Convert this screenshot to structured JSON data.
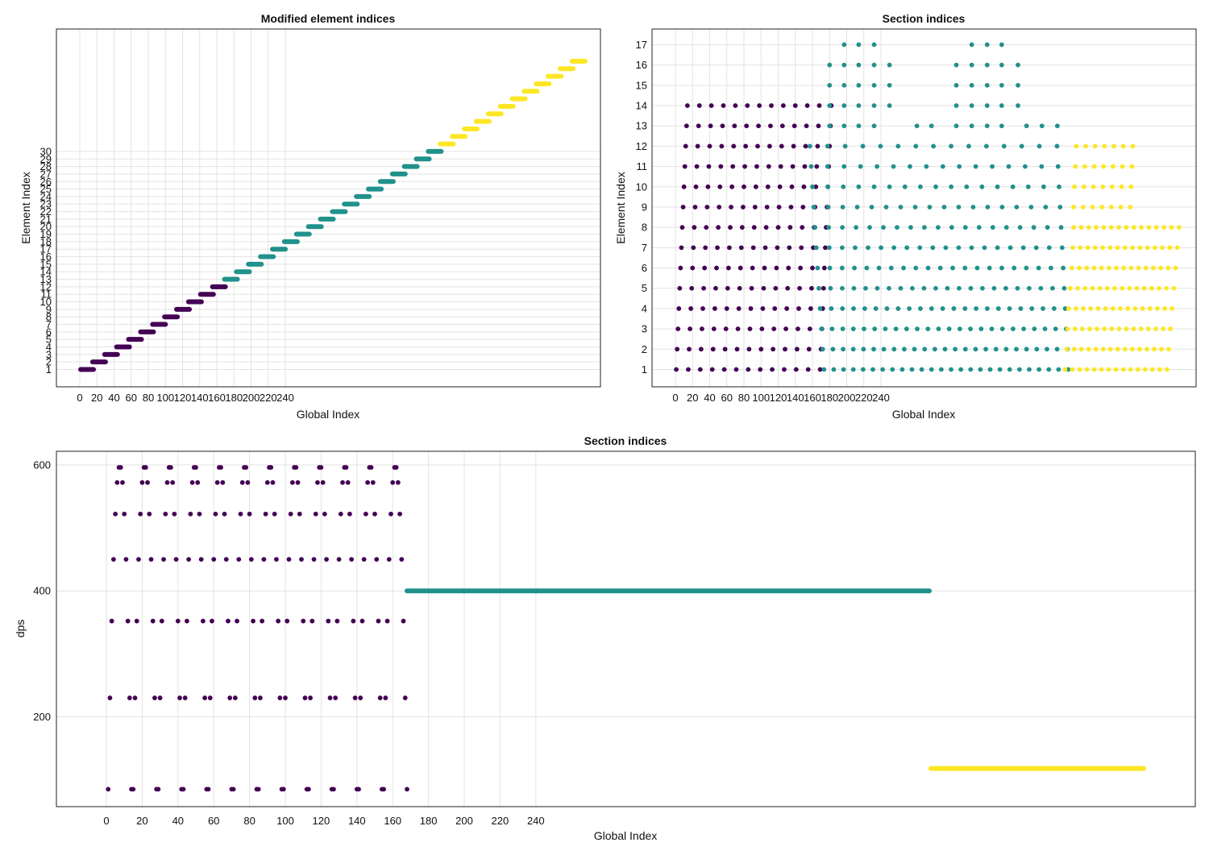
{
  "colors": {
    "purple": "#440154",
    "teal": "#21918c",
    "yellow": "#fde725"
  },
  "chart_data": [
    {
      "type": "scatter",
      "title": "Modified element indices",
      "xlabel": "Global Index",
      "ylabel": "Element Index",
      "xticks": [
        0,
        20,
        40,
        60,
        80,
        100,
        120,
        140,
        160,
        180,
        200,
        220,
        240
      ],
      "yticks": [
        1,
        2,
        3,
        4,
        5,
        6,
        7,
        8,
        9,
        10,
        11,
        12,
        13,
        14,
        15,
        16,
        17,
        18,
        19,
        20,
        21,
        22,
        23,
        24,
        25,
        26,
        27,
        28,
        29,
        30
      ],
      "grid": true,
      "series": [
        {
          "color": "purple",
          "x_segments": [
            [
              0,
              17
            ],
            [
              14,
              31
            ],
            [
              28,
              45
            ],
            [
              42,
              59
            ],
            [
              56,
              73
            ],
            [
              70,
              87
            ],
            [
              84,
              101
            ],
            [
              98,
              115
            ],
            [
              112,
              129
            ],
            [
              126,
              143
            ],
            [
              140,
              157
            ],
            [
              154,
              171
            ]
          ],
          "y_levels": [
            1,
            2,
            3,
            4,
            5,
            6,
            7,
            8,
            9,
            10,
            11,
            12
          ]
        },
        {
          "color": "teal",
          "x_segments": [
            [
              168,
              185
            ],
            [
              182,
              199
            ],
            [
              196,
              213
            ],
            [
              210,
              227
            ],
            [
              224,
              241
            ],
            [
              238,
              255
            ],
            [
              252,
              269
            ],
            [
              266,
              283
            ],
            [
              280,
              297
            ],
            [
              294,
              311
            ],
            [
              308,
              325
            ],
            [
              322,
              339
            ],
            [
              336,
              353
            ],
            [
              350,
              367
            ],
            [
              364,
              381
            ],
            [
              378,
              395
            ],
            [
              392,
              409
            ],
            [
              406,
              423
            ]
          ],
          "y_levels": [
            13,
            14,
            15,
            16,
            17,
            18,
            19,
            20,
            21,
            22,
            23,
            24,
            25,
            26,
            27,
            28,
            29,
            30
          ]
        },
        {
          "color": "yellow",
          "x_segments": [
            [
              420,
              437
            ],
            [
              434,
              451
            ],
            [
              448,
              465
            ],
            [
              462,
              479
            ],
            [
              476,
              493
            ],
            [
              490,
              507
            ],
            [
              504,
              521
            ],
            [
              518,
              535
            ],
            [
              532,
              549
            ],
            [
              546,
              563
            ],
            [
              560,
              577
            ],
            [
              574,
              591
            ]
          ],
          "y_levels": [
            31,
            32,
            33,
            34,
            35,
            36,
            37,
            38,
            39,
            40,
            41,
            42
          ]
        }
      ]
    },
    {
      "type": "scatter",
      "title": "Section indices",
      "xlabel": "Global Index",
      "ylabel": "Element Index",
      "xticks": [
        0,
        20,
        40,
        60,
        80,
        100,
        120,
        140,
        160,
        180,
        200,
        220,
        240
      ],
      "yticks": [
        1,
        2,
        3,
        4,
        5,
        6,
        7,
        8,
        9,
        10,
        11,
        12,
        13,
        14,
        15,
        16,
        17
      ],
      "grid": true,
      "series": [
        {
          "color": "purple",
          "description": "dots at (14*j + row) for j = 0..12, rows 1..14"
        },
        {
          "color": "teal",
          "description": "dots beyond x = 168 across rows 1..17"
        },
        {
          "color": "yellow",
          "description": "dots beyond x = 452 across rows 1..12"
        }
      ]
    },
    {
      "type": "scatter",
      "title": "Section indices",
      "xlabel": "Global Index",
      "ylabel": "dps",
      "xticks": [
        0,
        20,
        40,
        60,
        80,
        100,
        120,
        140,
        160,
        180,
        200,
        220,
        240
      ],
      "yticks": [
        200,
        400,
        600
      ],
      "ylim": [
        70,
        617
      ],
      "grid": true,
      "series": [
        {
          "color": "purple",
          "x_range": [
            0,
            168
          ],
          "y_levels": [
            85,
            230,
            352,
            450,
            522,
            572,
            596
          ]
        },
        {
          "color": "teal",
          "x_range": [
            168,
            452
          ],
          "value": 400
        },
        {
          "color": "yellow",
          "x_range": [
            452,
            588
          ],
          "value": 118
        }
      ]
    }
  ]
}
